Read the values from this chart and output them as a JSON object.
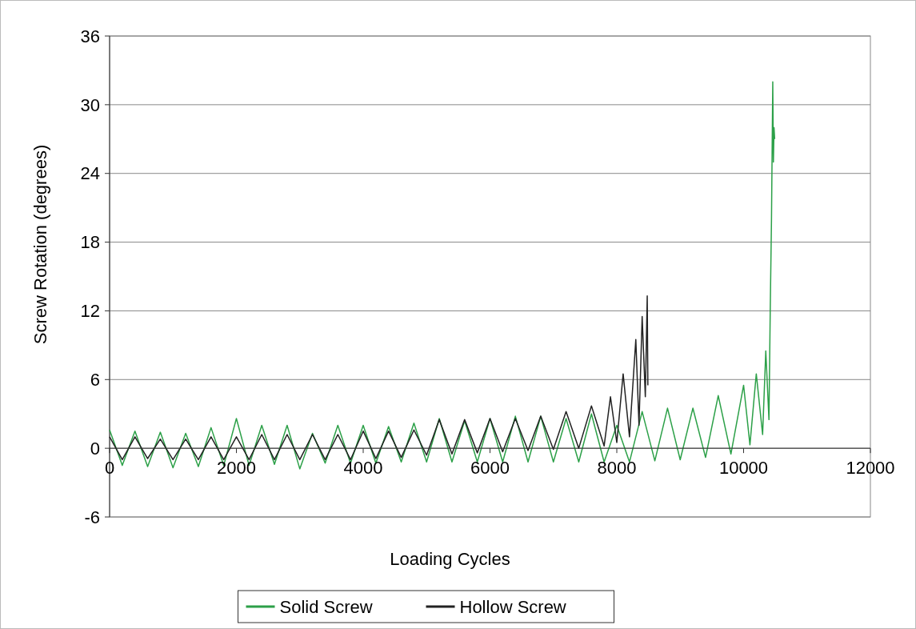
{
  "chart_data": {
    "type": "line",
    "xlabel": "Loading Cycles",
    "ylabel": "Screw Rotation (degrees)",
    "xlim": [
      0,
      12000
    ],
    "xticks": [
      0,
      2000,
      4000,
      6000,
      8000,
      10000,
      12000
    ],
    "ylim": [
      -6,
      36
    ],
    "yticks": [
      -6,
      0,
      6,
      12,
      18,
      24,
      30,
      36
    ],
    "grid": "y",
    "legend": "bottom",
    "series": [
      {
        "name": "Solid Screw",
        "color": "#2ca048",
        "x": [
          0,
          200,
          400,
          600,
          800,
          1000,
          1200,
          1400,
          1600,
          1800,
          2000,
          2200,
          2400,
          2600,
          2800,
          3000,
          3200,
          3400,
          3600,
          3800,
          4000,
          4200,
          4400,
          4600,
          4800,
          5000,
          5200,
          5400,
          5600,
          5800,
          6000,
          6200,
          6400,
          6600,
          6800,
          7000,
          7200,
          7400,
          7600,
          7800,
          8000,
          8200,
          8400,
          8600,
          8800,
          9000,
          9200,
          9400,
          9600,
          9800,
          10000,
          10100,
          10200,
          10300,
          10350,
          10400,
          10420,
          10440,
          10460,
          10470,
          10480,
          10490
        ],
        "values": [
          1.6,
          -1.5,
          1.5,
          -1.6,
          1.4,
          -1.7,
          1.3,
          -1.6,
          1.8,
          -1.5,
          2.6,
          -1.5,
          2.0,
          -1.4,
          2.0,
          -1.8,
          1.3,
          -1.3,
          2.0,
          -1.3,
          2.0,
          -1.3,
          1.9,
          -1.2,
          2.2,
          -1.2,
          2.6,
          -1.2,
          2.4,
          -1.2,
          2.6,
          -1.2,
          2.8,
          -1.2,
          2.8,
          -1.2,
          2.6,
          -1.2,
          3.0,
          -1.2,
          2.0,
          -1.2,
          3.2,
          -1.1,
          3.5,
          -1.0,
          3.5,
          -0.8,
          4.6,
          -0.5,
          5.5,
          0.3,
          6.5,
          1.2,
          8.5,
          2.5,
          12,
          20,
          32,
          25,
          28,
          27
        ]
      },
      {
        "name": "Hollow Screw",
        "color": "#222222",
        "x": [
          0,
          200,
          400,
          600,
          800,
          1000,
          1200,
          1400,
          1600,
          1800,
          2000,
          2200,
          2400,
          2600,
          2800,
          3000,
          3200,
          3400,
          3600,
          3800,
          4000,
          4200,
          4400,
          4600,
          4800,
          5000,
          5200,
          5400,
          5600,
          5800,
          6000,
          6200,
          6400,
          6600,
          6800,
          7000,
          7200,
          7400,
          7600,
          7800,
          7900,
          8000,
          8100,
          8200,
          8300,
          8350,
          8400,
          8450,
          8480,
          8490
        ],
        "values": [
          1.0,
          -1.0,
          1.0,
          -0.9,
          0.8,
          -1.0,
          0.8,
          -1.0,
          1.0,
          -1.0,
          1.0,
          -1.0,
          1.2,
          -1.0,
          1.2,
          -1.0,
          1.2,
          -1.0,
          1.2,
          -1.0,
          1.5,
          -0.9,
          1.5,
          -0.8,
          1.6,
          -0.6,
          2.5,
          -0.5,
          2.5,
          -0.4,
          2.6,
          -0.3,
          2.6,
          -0.2,
          2.8,
          -0.1,
          3.2,
          0.0,
          3.7,
          0.2,
          4.5,
          0.5,
          6.5,
          1.0,
          9.5,
          2.0,
          11.5,
          4.5,
          13.3,
          5.5
        ]
      }
    ]
  }
}
